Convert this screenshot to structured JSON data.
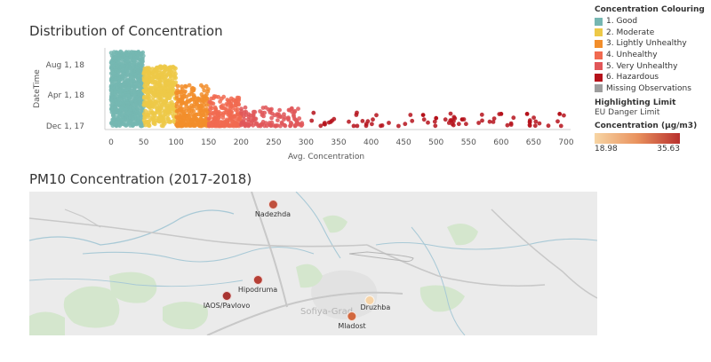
{
  "dashboard": {
    "chart_title": "Distribution of Concentration",
    "map_title": "PM10 Concentration (2017-2018)"
  },
  "legend": {
    "title": "Concentration Colouring",
    "items": [
      {
        "label": "1. Good",
        "color": "#76b7b2"
      },
      {
        "label": "2. Moderate",
        "color": "#edc948"
      },
      {
        "label": "3. Lightly Unhealthy",
        "color": "#f28e2b"
      },
      {
        "label": "4. Unhealthy",
        "color": "#f16a50"
      },
      {
        "label": "5. Very Unhealthy",
        "color": "#e15759"
      },
      {
        "label": "6. Hazardous",
        "color": "#b5121b"
      },
      {
        "label": "Missing Observations",
        "color": "#9d9d9d"
      }
    ],
    "highlight_title": "Highlighting Limit",
    "highlight_value": "EU Danger Limit",
    "gradient_title": "Concentration (μg/m3)",
    "gradient_min": "18.98",
    "gradient_max": "35.63"
  },
  "chart_data": {
    "type": "scatter",
    "title": "Distribution of Concentration",
    "xlabel": "Avg. Concentration",
    "ylabel": "DateTime",
    "xlim": [
      0,
      700
    ],
    "x_ticks": [
      "0",
      "50",
      "100",
      "150",
      "200",
      "250",
      "300",
      "350",
      "400",
      "450",
      "500",
      "550",
      "600",
      "650",
      "700"
    ],
    "y_ticks": [
      "Aug 1, 18",
      "Apr 1, 18",
      "Dec 1, 17"
    ],
    "y_range": [
      "2017-11-20",
      "2018-09-01"
    ],
    "bands": [
      {
        "category": "1. Good",
        "x_min": 0,
        "x_max": 50,
        "color": "#76b7b2"
      },
      {
        "category": "2. Moderate",
        "x_min": 50,
        "x_max": 100,
        "color": "#edc948"
      },
      {
        "category": "3. Lightly Unhealthy",
        "x_min": 100,
        "x_max": 150,
        "color": "#f28e2b"
      },
      {
        "category": "4. Unhealthy",
        "x_min": 150,
        "x_max": 200,
        "color": "#f16a50"
      },
      {
        "category": "5. Very Unhealthy",
        "x_min": 200,
        "x_max": 300,
        "color": "#e15759"
      },
      {
        "category": "6. Hazardous",
        "x_min": 300,
        "x_max": 700,
        "color": "#b5121b"
      }
    ],
    "outliers": [
      {
        "x": 480,
        "date": "2018-01-01"
      },
      {
        "x": 500,
        "date": "2017-12-20"
      },
      {
        "x": 540,
        "date": "2017-12-15"
      },
      {
        "x": 600,
        "date": "2018-01-05"
      },
      {
        "x": 640,
        "date": "2018-01-05"
      },
      {
        "x": 690,
        "date": "2018-01-05"
      }
    ],
    "grid": false
  },
  "map": {
    "city_label": "Sofiya-Grad",
    "stations": [
      {
        "name": "Nadezhda",
        "color": "#c0503d",
        "value_scale": 0.8
      },
      {
        "name": "Hipodruma",
        "color": "#b63f35",
        "value_scale": 0.85
      },
      {
        "name": "IAOS/Pavlovo",
        "color": "#a83330",
        "value_scale": 0.95
      },
      {
        "name": "Druzhba",
        "color": "#f6d3a6",
        "value_scale": 0.05
      },
      {
        "name": "Mladost",
        "color": "#d2683f",
        "value_scale": 0.55
      }
    ]
  }
}
